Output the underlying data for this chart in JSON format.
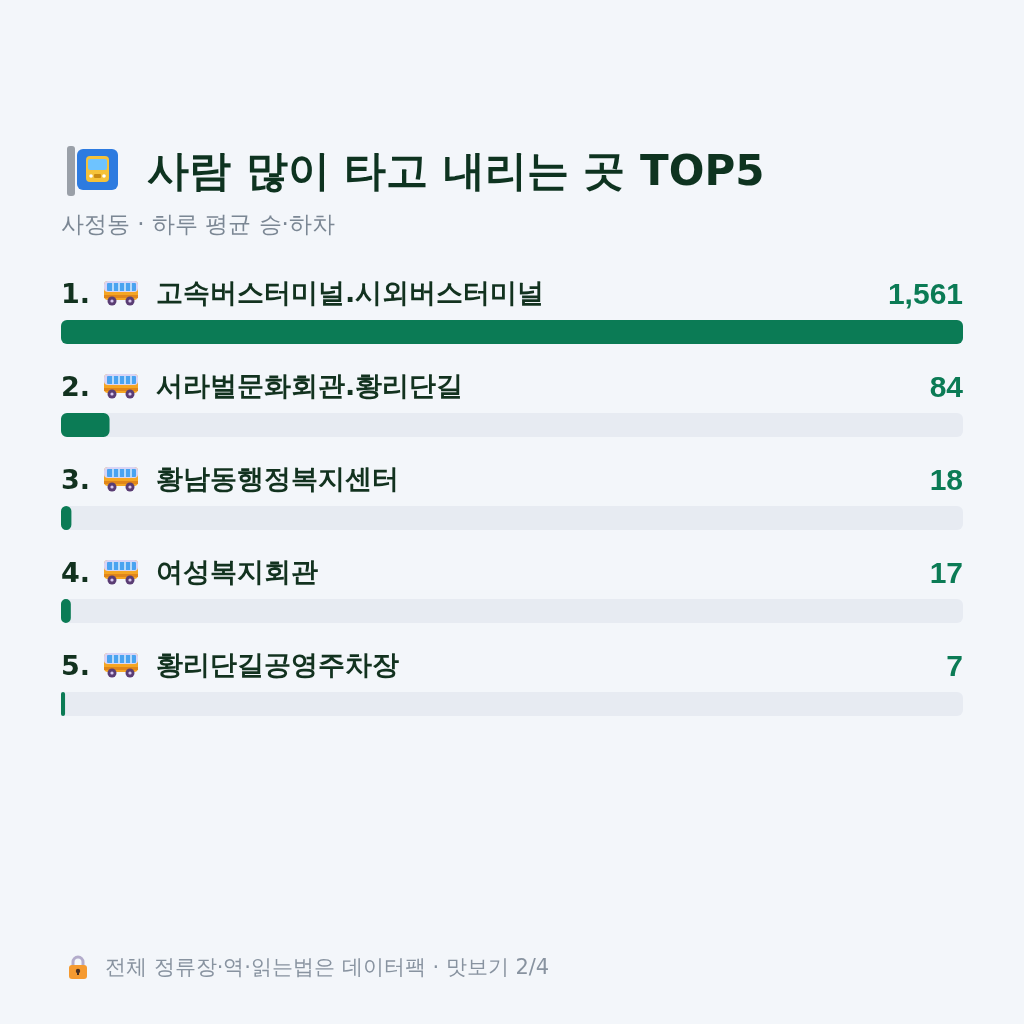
{
  "chart_data": {
    "type": "bar",
    "orientation": "horizontal",
    "title": "사람 많이 타고 내리는 곳 TOP5",
    "subtitle": "사정동 · 하루 평균 승·하차",
    "categories": [
      "1. 고속버스터미널.시외버스터미널",
      "2. 서라벌문화회관.황리단길",
      "3. 황남동행정복지센터",
      "4. 여성복지회관",
      "5. 황리단길공영주차장"
    ],
    "values": [
      1561,
      84,
      18,
      17,
      7
    ],
    "value_labels": [
      "1,561",
      "84",
      "18",
      "17",
      "7"
    ],
    "color": "#0b7b55",
    "xlim": [
      0,
      1561
    ],
    "tick_labels": "y",
    "annotations": [
      "전체 정류장·역·읽는법은 데이터팩 · 맛보기 2/4"
    ]
  }
}
